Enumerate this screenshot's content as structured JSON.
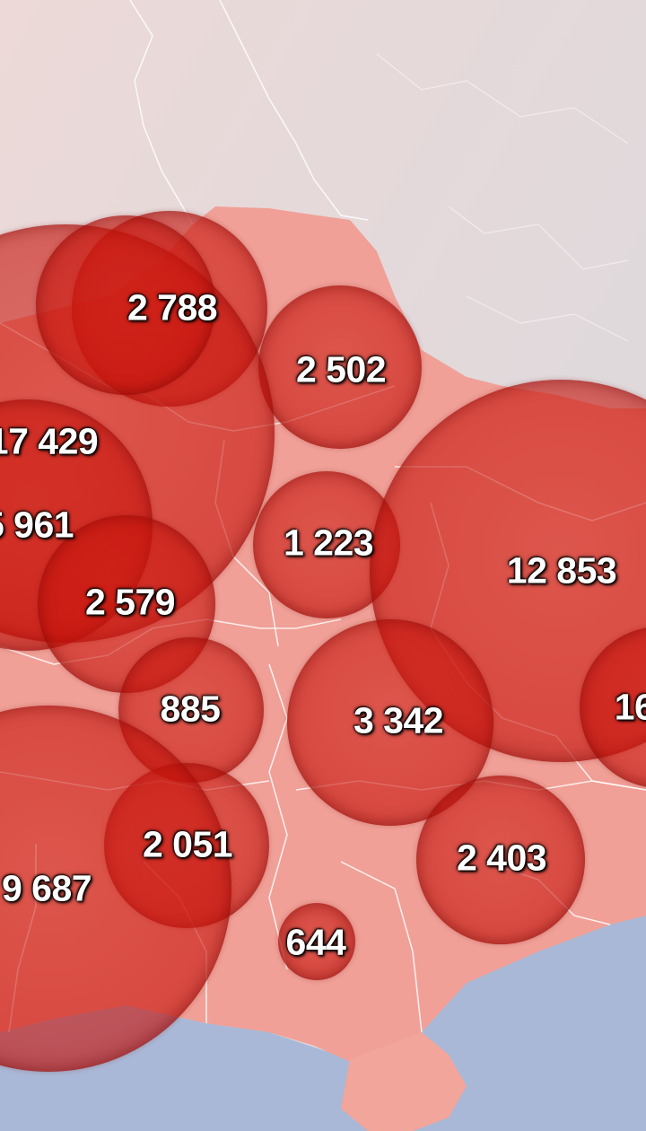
{
  "map": {
    "colors": {
      "background": "#e2d8d8",
      "land": "#f0a097",
      "sea": "#a9b8d6",
      "borders": "#ffffff",
      "circle_fill": "#c7160d"
    },
    "bubbles": [
      {
        "id": "b1",
        "label": "2 788",
        "value": 2788
      },
      {
        "id": "b2",
        "label": "2 502",
        "value": 2502
      },
      {
        "id": "b3",
        "label": "17 429",
        "value": 17429
      },
      {
        "id": "b4",
        "label": "5 961",
        "value": 5961
      },
      {
        "id": "b5",
        "label": "2 579",
        "value": 2579
      },
      {
        "id": "b6",
        "label": "1 223",
        "value": 1223
      },
      {
        "id": "b7",
        "label": "12 853",
        "value": 12853
      },
      {
        "id": "b8",
        "label": "885",
        "value": 885
      },
      {
        "id": "b9",
        "label": "3 342",
        "value": 3342
      },
      {
        "id": "b10",
        "label": "16",
        "value": null
      },
      {
        "id": "b11",
        "label": "2 051",
        "value": 2051
      },
      {
        "id": "b12",
        "label": "9 687",
        "value": 9687
      },
      {
        "id": "b13",
        "label": "2 403",
        "value": 2403
      },
      {
        "id": "b14",
        "label": "644",
        "value": 644
      },
      {
        "id": "b15",
        "label": "",
        "value": null
      }
    ]
  }
}
